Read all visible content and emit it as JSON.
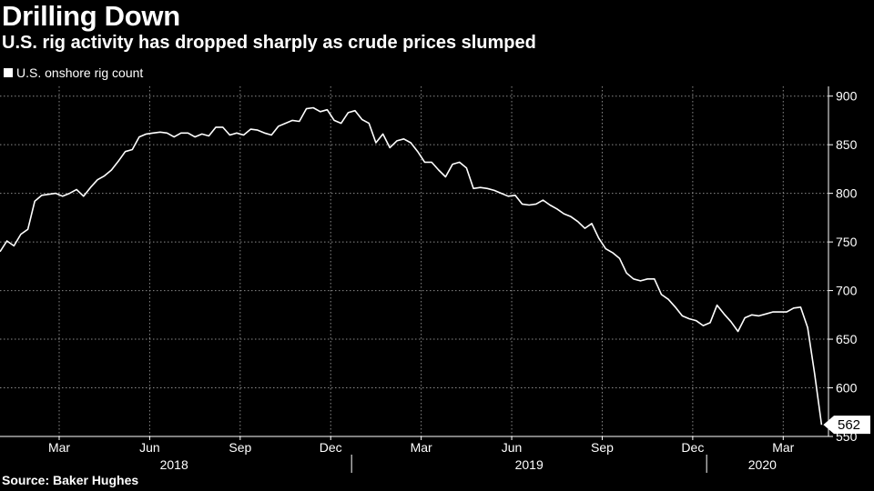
{
  "chart_data": {
    "type": "line",
    "title": "Drilling Down",
    "subtitle": "U.S. rig activity has dropped sharply as crude prices slumped",
    "source": "Source: Baker Hughes",
    "ylim": [
      550,
      910
    ],
    "xlim": [
      0,
      119
    ],
    "grid": true,
    "legend_placement": "top-left",
    "y_ticks": [
      {
        "value": 900,
        "label": "900"
      },
      {
        "value": 850,
        "label": "850"
      },
      {
        "value": 800,
        "label": "800"
      },
      {
        "value": 750,
        "label": "750"
      },
      {
        "value": 700,
        "label": "700"
      },
      {
        "value": 650,
        "label": "650"
      },
      {
        "value": 600,
        "label": "600"
      },
      {
        "value": 550,
        "label": "550"
      }
    ],
    "month_ticks": [
      {
        "x": 8.5,
        "label": "Mar"
      },
      {
        "x": 21.5,
        "label": "Jun"
      },
      {
        "x": 34.5,
        "label": "Sep"
      },
      {
        "x": 47.5,
        "label": "Dec"
      },
      {
        "x": 60.5,
        "label": "Mar"
      },
      {
        "x": 73.5,
        "label": "Jun"
      },
      {
        "x": 86.5,
        "label": "Sep"
      },
      {
        "x": 99.5,
        "label": "Dec"
      },
      {
        "x": 112.5,
        "label": "Mar"
      }
    ],
    "years": [
      {
        "label": "2018",
        "center": 25.0
      },
      {
        "label": "2019",
        "center": 76.0
      },
      {
        "label": "2020",
        "center": 109.5
      }
    ],
    "year_dividers": [
      50.5,
      101.5
    ],
    "series": [
      {
        "name": "U.S. onshore rig count",
        "color": "#ffffff",
        "last_label": "562",
        "values": [
          740,
          751,
          746,
          758,
          763,
          792,
          798,
          799,
          800,
          797,
          800,
          804,
          797,
          806,
          814,
          818,
          824,
          833,
          843,
          845,
          858,
          861,
          862,
          863,
          862,
          858,
          862,
          862,
          858,
          861,
          859,
          868,
          868,
          860,
          862,
          860,
          866,
          865,
          862,
          860,
          869,
          872,
          875,
          874,
          887,
          888,
          884,
          886,
          875,
          872,
          883,
          885,
          876,
          872,
          852,
          861,
          847,
          854,
          856,
          852,
          843,
          832,
          832,
          824,
          817,
          830,
          832,
          826,
          805,
          806,
          805,
          803,
          800,
          797,
          798,
          789,
          788,
          789,
          793,
          788,
          784,
          779,
          776,
          771,
          764,
          769,
          754,
          743,
          739,
          733,
          718,
          712,
          710,
          712,
          712,
          696,
          691,
          683,
          674,
          671,
          669,
          664,
          667,
          685,
          676,
          668,
          658,
          672,
          675,
          674,
          676,
          678,
          678,
          678,
          682,
          683,
          662,
          615,
          562
        ]
      }
    ]
  }
}
